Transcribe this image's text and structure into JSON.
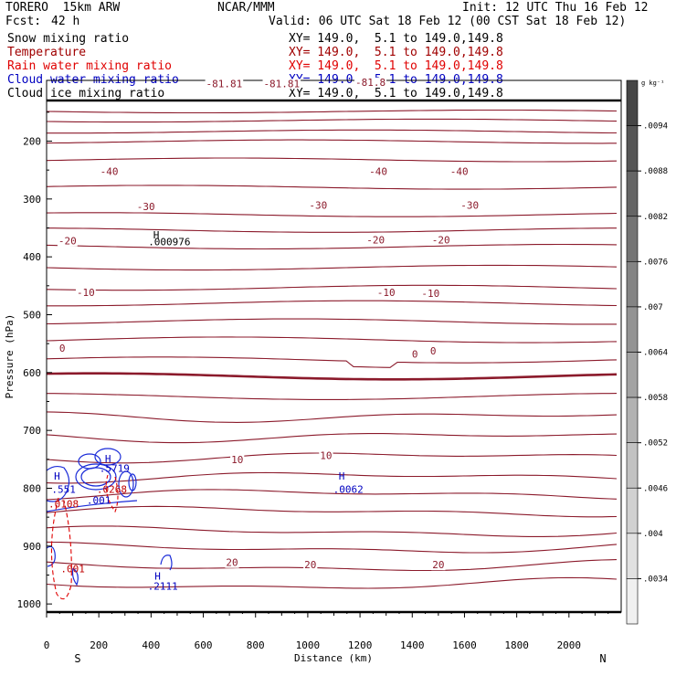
{
  "header": {
    "model": "TORERO  15km ARW",
    "org": "NCAR/MMM",
    "init": "Init: 12 UTC Thu 16 Feb 12",
    "fcst_label": "Fcst:",
    "fcst_value": "42 h",
    "valid": "Valid: 06 UTC Sat 18 Feb 12 (00 CST Sat 18 Feb 12)"
  },
  "fields": [
    {
      "name": "Snow mixing ratio",
      "xy": "XY= 149.0,  5.1 to 149.0,149.8",
      "color": "#000000"
    },
    {
      "name": "Temperature",
      "xy": "XY= 149.0,  5.1 to 149.0,149.8",
      "color": "#a00000"
    },
    {
      "name": "Rain water mixing ratio",
      "xy": "XY= 149.0,  5.1 to 149.0,149.8",
      "color": "#e00000"
    },
    {
      "name": "Cloud water mixing ratio",
      "xy": "XY= 149.0,  5.1 to 149.0,149.8",
      "color": "#0000c0"
    },
    {
      "name": "Cloud ice mixing ratio",
      "xy": "XY= 149.0,  5.1 to 149.0,149.8",
      "color": "#000000"
    }
  ],
  "chart_data": {
    "type": "cross-section contour",
    "xlabel": "Distance (km)",
    "ylabel": "Pressure (hPa)",
    "xlim": [
      0,
      2200
    ],
    "ylim": [
      1015,
      95
    ],
    "x_ticks": [
      0,
      200,
      400,
      600,
      800,
      1000,
      1200,
      1400,
      1600,
      1800,
      2000
    ],
    "y_ticks": [
      200,
      300,
      400,
      500,
      600,
      700,
      800,
      900,
      1000
    ],
    "left_end_label": "S",
    "right_end_label": "N",
    "colorbar": {
      "unit": "g kg⁻¹",
      "labels": [
        ".0094",
        ".0088",
        ".0082",
        ".0076",
        ".007",
        ".0064",
        ".0058",
        ".0052",
        ".0046",
        ".004",
        ".0034"
      ]
    },
    "temperature_labels": [
      {
        "text": "-81.81",
        "x": 680,
        "p": 105
      },
      {
        "text": "-81.81",
        "x": 900,
        "p": 105
      },
      {
        "text": "-81.8",
        "x": 1240,
        "p": 103
      },
      {
        "text": "-40",
        "x": 240,
        "p": 257
      },
      {
        "text": "-40",
        "x": 1270,
        "p": 257
      },
      {
        "text": "-40",
        "x": 1580,
        "p": 257
      },
      {
        "text": "-30",
        "x": 380,
        "p": 318
      },
      {
        "text": "-30",
        "x": 1040,
        "p": 315
      },
      {
        "text": "-30",
        "x": 1620,
        "p": 315
      },
      {
        "text": "-20",
        "x": 80,
        "p": 377
      },
      {
        "text": "-20",
        "x": 1260,
        "p": 375
      },
      {
        "text": "-20",
        "x": 1510,
        "p": 375
      },
      {
        "text": "-10",
        "x": 150,
        "p": 466
      },
      {
        "text": "-10",
        "x": 1300,
        "p": 466
      },
      {
        "text": "-10",
        "x": 1470,
        "p": 468
      },
      {
        "text": "0",
        "x": 60,
        "p": 562
      },
      {
        "text": "0",
        "x": 1410,
        "p": 573
      },
      {
        "text": "0",
        "x": 1480,
        "p": 567
      },
      {
        "text": "10",
        "x": 730,
        "p": 755
      },
      {
        "text": "10",
        "x": 1070,
        "p": 748
      },
      {
        "text": "20",
        "x": 710,
        "p": 933
      },
      {
        "text": "20",
        "x": 1010,
        "p": 937
      },
      {
        "text": "20",
        "x": 1500,
        "p": 937
      }
    ],
    "hl_labels": [
      {
        "text": "H",
        "x": 420,
        "p": 368,
        "color": "#000000"
      },
      {
        "text": ".000976",
        "x": 470,
        "p": 380,
        "color": "#000000"
      },
      {
        "text": "H",
        "x": 40,
        "p": 785,
        "color": "#0000c0"
      },
      {
        "text": ".551",
        "x": 65,
        "p": 808,
        "color": "#0000c0"
      },
      {
        "text": "H",
        "x": 235,
        "p": 755,
        "color": "#0000c0"
      },
      {
        "text": ".5719",
        "x": 260,
        "p": 772,
        "color": "#0000c0"
      },
      {
        "text": ".001",
        "x": 200,
        "p": 827,
        "color": "#0000c0"
      },
      {
        "text": "H",
        "x": 1130,
        "p": 785,
        "color": "#0000c0"
      },
      {
        "text": ".0062",
        "x": 1155,
        "p": 808,
        "color": "#0000c0"
      },
      {
        "text": "H",
        "x": 425,
        "p": 958,
        "color": "#0000c0"
      },
      {
        "text": ".2111",
        "x": 445,
        "p": 975,
        "color": "#0000c0"
      },
      {
        "text": ".0268",
        "x": 250,
        "p": 808,
        "color": "#c00000"
      },
      {
        "text": ".0108",
        "x": 65,
        "p": 833,
        "color": "#c00000"
      },
      {
        "text": ".001",
        "x": 100,
        "p": 945,
        "color": "#c00000"
      }
    ]
  }
}
